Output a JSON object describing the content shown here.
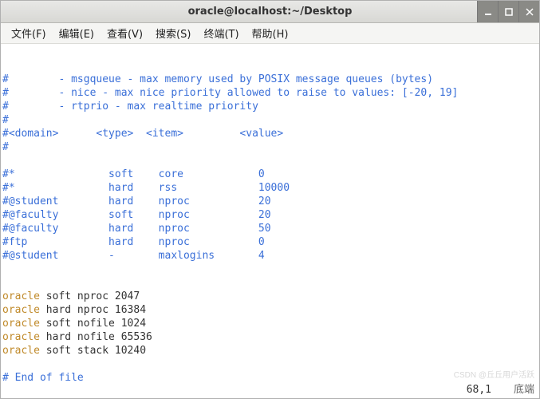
{
  "window": {
    "title": "oracle@localhost:~/Desktop"
  },
  "menu": {
    "file": "文件(F)",
    "edit": "编辑(E)",
    "view": "查看(V)",
    "search": "搜索(S)",
    "terminal": "终端(T)",
    "help": "帮助(H)"
  },
  "colors": {
    "comment": "#3a6fd8",
    "keyword": "#c08a2a",
    "text": "#333333",
    "background": "#ffffff",
    "titlebar_bg_top": "#e8e8e6",
    "titlebar_bg_bottom": "#d8d8d4",
    "menubar_bg": "#f5f5f3",
    "winbtn_bg": "#8a8a86"
  },
  "content": {
    "lines": [
      {
        "class": "c-comment",
        "text": "#        - msgqueue - max memory used by POSIX message queues (bytes)"
      },
      {
        "class": "c-comment",
        "text": "#        - nice - max nice priority allowed to raise to values: [-20, 19]"
      },
      {
        "class": "c-comment",
        "text": "#        - rtprio - max realtime priority"
      },
      {
        "class": "c-comment",
        "text": "#"
      },
      {
        "class": "c-comment",
        "text": "#<domain>      <type>  <item>         <value>"
      },
      {
        "class": "c-comment",
        "text": "#"
      },
      {
        "class": "c-comment",
        "text": ""
      },
      {
        "class": "c-comment",
        "text": "#*               soft    core            0"
      },
      {
        "class": "c-comment",
        "text": "#*               hard    rss             10000"
      },
      {
        "class": "c-comment",
        "text": "#@student        hard    nproc           20"
      },
      {
        "class": "c-comment",
        "text": "#@faculty        soft    nproc           20"
      },
      {
        "class": "c-comment",
        "text": "#@faculty        hard    nproc           50"
      },
      {
        "class": "c-comment",
        "text": "#ftp             hard    nproc           0"
      },
      {
        "class": "c-comment",
        "text": "#@student        -       maxlogins       4"
      },
      {
        "class": "c-default",
        "text": ""
      },
      {
        "class": "c-default",
        "text": ""
      },
      {
        "spans": [
          {
            "class": "c-orange",
            "text": "oracle"
          },
          {
            "class": "c-default",
            "text": " soft nproc 2047"
          }
        ]
      },
      {
        "spans": [
          {
            "class": "c-orange",
            "text": "oracle"
          },
          {
            "class": "c-default",
            "text": " hard nproc 16384"
          }
        ]
      },
      {
        "spans": [
          {
            "class": "c-orange",
            "text": "oracle"
          },
          {
            "class": "c-default",
            "text": " soft nofile 1024"
          }
        ]
      },
      {
        "spans": [
          {
            "class": "c-orange",
            "text": "oracle"
          },
          {
            "class": "c-default",
            "text": " hard nofile 65536"
          }
        ]
      },
      {
        "spans": [
          {
            "class": "c-orange",
            "text": "oracle"
          },
          {
            "class": "c-default",
            "text": " soft stack 10240"
          }
        ]
      },
      {
        "class": "c-default",
        "text": ""
      },
      {
        "class": "c-comment",
        "text": "# End of file"
      }
    ]
  },
  "status": {
    "position": "68,1",
    "mode": "底端"
  },
  "watermark": "CSDN @丘丘用户活跃"
}
